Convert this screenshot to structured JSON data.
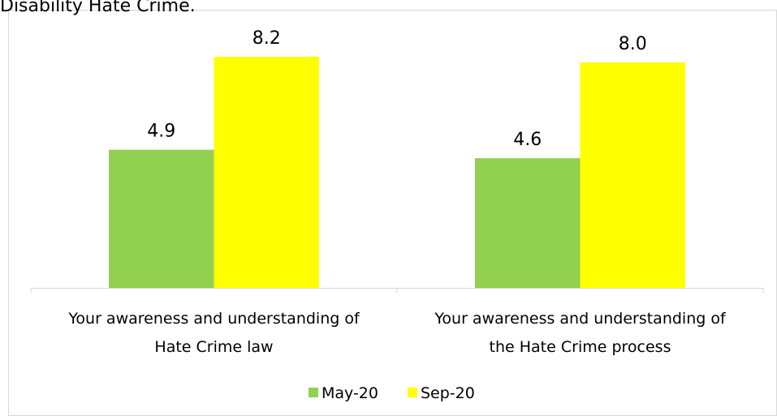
{
  "chart_data": {
    "type": "bar",
    "title": "Disability Hate Crime.",
    "categories": [
      [
        "Your awareness and understanding of",
        "Hate Crime law"
      ],
      [
        "Your awareness and understanding of",
        "the Hate Crime process"
      ]
    ],
    "series": [
      {
        "name": "May-20",
        "color": "#92d050",
        "values": [
          4.9,
          4.6
        ],
        "value_labels": [
          "4.9",
          "4.6"
        ]
      },
      {
        "name": "Sep-20",
        "color": "#ffff00",
        "values": [
          8.2,
          8.0
        ],
        "value_labels": [
          "8.2",
          "8.0"
        ]
      }
    ],
    "ylim": [
      0,
      10
    ],
    "legend": "bottom"
  }
}
